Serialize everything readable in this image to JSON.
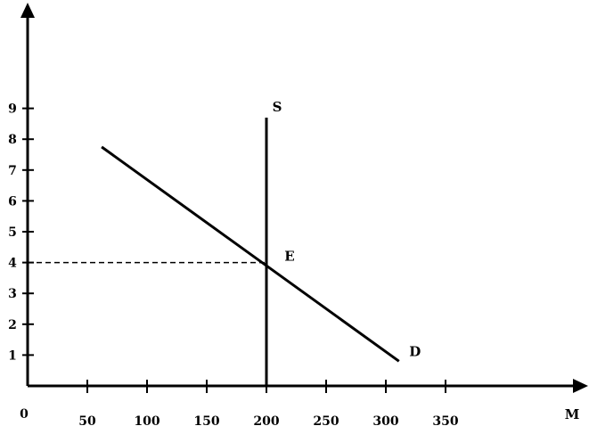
{
  "chart_data": {
    "type": "line",
    "title": "",
    "xlabel": "M",
    "ylabel": "",
    "origin_label": "0",
    "xlim": [
      0,
      350
    ],
    "ylim": [
      0,
      9
    ],
    "x_ticks": [
      50,
      100,
      150,
      200,
      250,
      300,
      350
    ],
    "x_tick_labels": [
      "50",
      "100",
      "150",
      "200",
      "250",
      "300",
      "350"
    ],
    "y_ticks": [
      1,
      2,
      3,
      4,
      5,
      6,
      7,
      8,
      9
    ],
    "y_tick_labels": [
      "1",
      "2",
      "3",
      "4",
      "5",
      "6",
      "7",
      "8",
      "9"
    ],
    "grid": false,
    "series": [
      {
        "name": "S",
        "x": [
          200,
          200
        ],
        "y": [
          0,
          8.7
        ]
      },
      {
        "name": "D",
        "x": [
          62,
          311
        ],
        "y": [
          7.75,
          0.8
        ]
      }
    ],
    "annotations": [
      {
        "label": "E",
        "x": 200,
        "y": 4,
        "guide": "dashed line to y-axis"
      }
    ]
  }
}
